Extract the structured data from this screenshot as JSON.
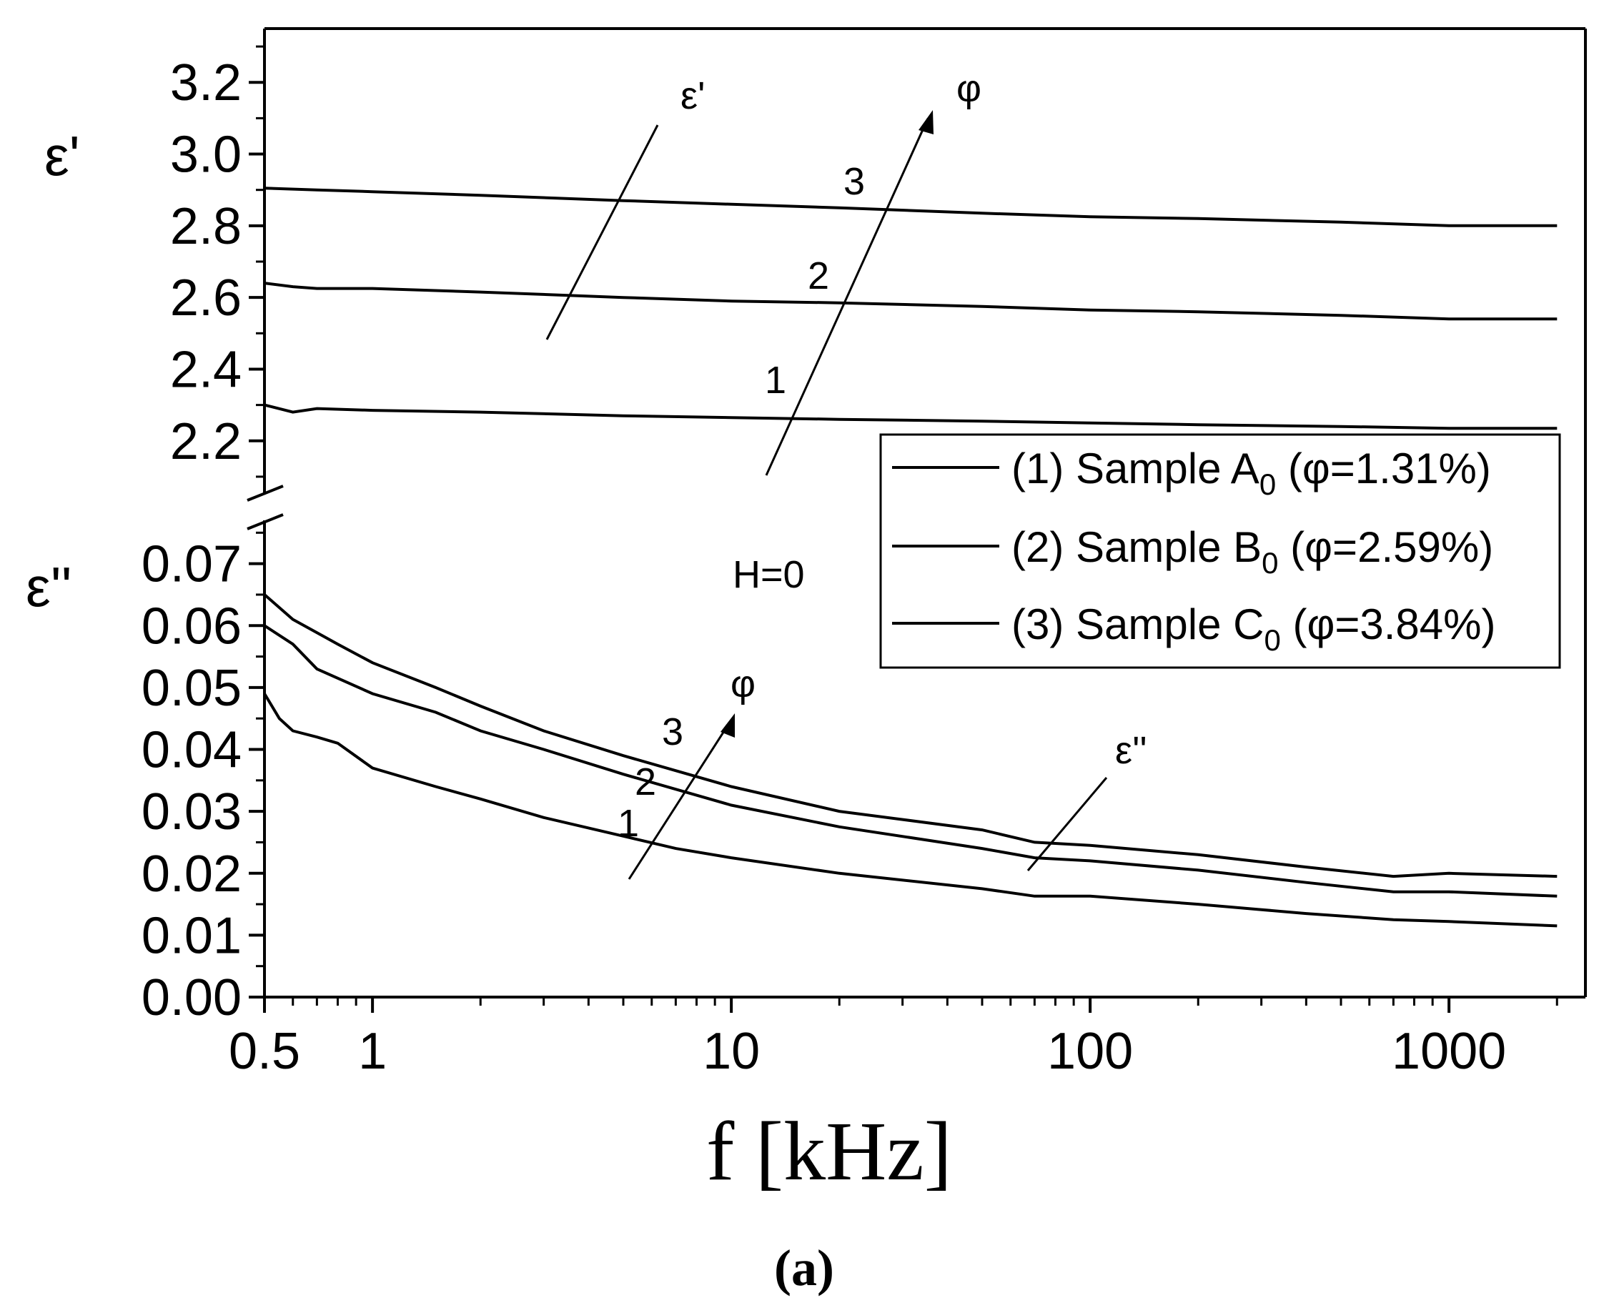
{
  "chart_data": {
    "type": "line",
    "panel_label": "(a)",
    "xlabel": "f [kHz]",
    "x_scale": "log",
    "xlim": [
      0.5,
      2400
    ],
    "x_ticks": [
      0.5,
      1,
      10,
      100,
      1000
    ],
    "x_tick_labels": [
      "0.5",
      "1",
      "10",
      "100",
      "1000"
    ],
    "upper_panel": {
      "ylabel": "ε'",
      "ylim": [
        2.05,
        3.35
      ],
      "y_ticks": [
        2.2,
        2.4,
        2.6,
        2.8,
        3.0,
        3.2
      ],
      "y_tick_labels": [
        "2.2",
        "2.4",
        "2.6",
        "2.8",
        "3.0",
        "3.2"
      ],
      "series": [
        {
          "label": "1",
          "x": [
            0.5,
            0.6,
            0.7,
            1,
            2,
            5,
            10,
            20,
            50,
            100,
            200,
            500,
            1000,
            2000
          ],
          "y": [
            2.3,
            2.28,
            2.29,
            2.285,
            2.28,
            2.27,
            2.265,
            2.26,
            2.255,
            2.25,
            2.245,
            2.24,
            2.235,
            2.235
          ]
        },
        {
          "label": "2",
          "x": [
            0.5,
            0.6,
            0.7,
            1,
            2,
            5,
            10,
            20,
            50,
            100,
            200,
            500,
            1000,
            2000
          ],
          "y": [
            2.64,
            2.63,
            2.625,
            2.625,
            2.615,
            2.6,
            2.59,
            2.585,
            2.575,
            2.565,
            2.56,
            2.55,
            2.54,
            2.54
          ]
        },
        {
          "label": "3",
          "x": [
            0.5,
            0.7,
            1,
            2,
            5,
            10,
            20,
            50,
            100,
            200,
            500,
            1000,
            2000
          ],
          "y": [
            2.905,
            2.9,
            2.895,
            2.885,
            2.87,
            2.86,
            2.85,
            2.835,
            2.825,
            2.82,
            2.81,
            2.8,
            2.8
          ]
        }
      ]
    },
    "lower_panel": {
      "ylabel": "ε''",
      "ylim": [
        0.0,
        0.077
      ],
      "y_ticks": [
        0.0,
        0.01,
        0.02,
        0.03,
        0.04,
        0.05,
        0.06,
        0.07
      ],
      "y_tick_labels": [
        "0.00",
        "0.01",
        "0.02",
        "0.03",
        "0.04",
        "0.05",
        "0.06",
        "0.07"
      ],
      "series": [
        {
          "label": "1",
          "x": [
            0.5,
            0.55,
            0.6,
            0.7,
            0.8,
            1,
            1.5,
            2,
            3,
            5,
            7,
            10,
            20,
            50,
            70,
            100,
            200,
            400,
            700,
            1000,
            2000
          ],
          "y": [
            0.049,
            0.045,
            0.043,
            0.042,
            0.041,
            0.037,
            0.034,
            0.032,
            0.029,
            0.026,
            0.024,
            0.0225,
            0.02,
            0.0175,
            0.0163,
            0.0163,
            0.015,
            0.0135,
            0.0125,
            0.0122,
            0.0115
          ]
        },
        {
          "label": "2",
          "x": [
            0.5,
            0.6,
            0.7,
            1,
            1.5,
            2,
            3,
            5,
            10,
            20,
            50,
            70,
            100,
            200,
            400,
            700,
            1000,
            2000
          ],
          "y": [
            0.06,
            0.057,
            0.053,
            0.049,
            0.046,
            0.043,
            0.04,
            0.036,
            0.031,
            0.0275,
            0.024,
            0.0225,
            0.022,
            0.0205,
            0.0185,
            0.017,
            0.017,
            0.0163
          ]
        },
        {
          "label": "3",
          "x": [
            0.5,
            0.6,
            0.8,
            1,
            1.5,
            2,
            3,
            5,
            10,
            20,
            50,
            70,
            100,
            200,
            400,
            700,
            1000,
            2000
          ],
          "y": [
            0.065,
            0.061,
            0.057,
            0.054,
            0.05,
            0.047,
            0.043,
            0.039,
            0.034,
            0.03,
            0.027,
            0.025,
            0.0245,
            0.023,
            0.021,
            0.0195,
            0.02,
            0.0195
          ]
        }
      ]
    },
    "legend": {
      "placement": "right, between panels",
      "entries": [
        {
          "prefix": "(1) Sample A",
          "sub": "0",
          "suffix": " (φ=1.31%)"
        },
        {
          "prefix": "(2) Sample B",
          "sub": "0",
          "suffix": " (φ=2.59%)"
        },
        {
          "prefix": "(3) Sample C",
          "sub": "0",
          "suffix": " (φ=3.84%)"
        }
      ]
    },
    "annotations": {
      "h_label": "H=0",
      "phi": "φ",
      "eps_prime": "ε'",
      "eps_double": "ε''",
      "curve_numbers": [
        "1",
        "2",
        "3"
      ]
    }
  }
}
